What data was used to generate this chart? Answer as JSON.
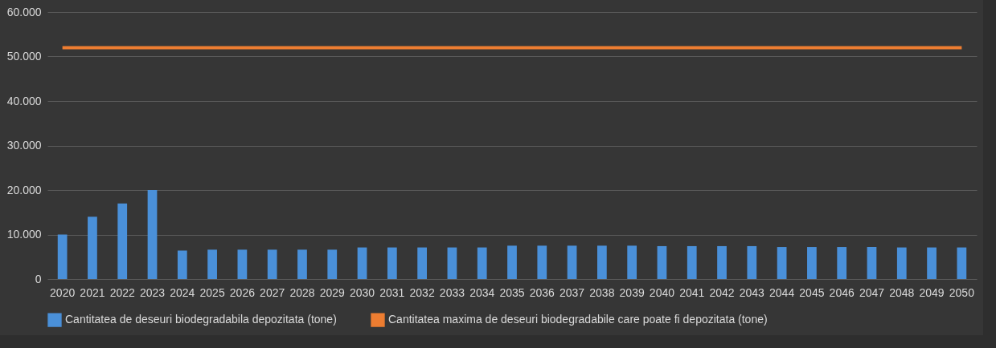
{
  "chart_data": {
    "type": "bar",
    "categories": [
      "2020",
      "2021",
      "2022",
      "2023",
      "2024",
      "2025",
      "2026",
      "2027",
      "2028",
      "2029",
      "2030",
      "2031",
      "2032",
      "2033",
      "2034",
      "2035",
      "2036",
      "2037",
      "2038",
      "2039",
      "2040",
      "2041",
      "2042",
      "2043",
      "2044",
      "2045",
      "2046",
      "2047",
      "2048",
      "2049",
      "2050"
    ],
    "series": [
      {
        "name": "Cantitatea de deseuri biodegradabila depozitata (tone)",
        "color": "#4a90d9",
        "values": [
          10000,
          14000,
          17000,
          20000,
          6400,
          6600,
          6600,
          6600,
          6600,
          6600,
          7100,
          7100,
          7100,
          7100,
          7100,
          7500,
          7500,
          7500,
          7500,
          7500,
          7400,
          7400,
          7400,
          7400,
          7200,
          7200,
          7200,
          7200,
          7100,
          7100,
          7100
        ]
      },
      {
        "name": "Cantitatea maxima de deseuri biodegradabile care poate fi depozitata (tone)",
        "type": "line",
        "color": "#ed7d31",
        "values": [
          52000,
          52000,
          52000,
          52000,
          52000,
          52000,
          52000,
          52000,
          52000,
          52000,
          52000,
          52000,
          52000,
          52000,
          52000,
          52000,
          52000,
          52000,
          52000,
          52000,
          52000,
          52000,
          52000,
          52000,
          52000,
          52000,
          52000,
          52000,
          52000,
          52000,
          52000
        ]
      }
    ],
    "ylim": [
      0,
      60000
    ],
    "yticks": [
      {
        "value": 0,
        "label": "0"
      },
      {
        "value": 10000,
        "label": "10.000"
      },
      {
        "value": 20000,
        "label": "20.000"
      },
      {
        "value": 30000,
        "label": "30.000"
      },
      {
        "value": 40000,
        "label": "40.000"
      },
      {
        "value": 50000,
        "label": "50.000"
      },
      {
        "value": 60000,
        "label": "60.000"
      }
    ],
    "grid": "y",
    "legend": "bottom"
  }
}
